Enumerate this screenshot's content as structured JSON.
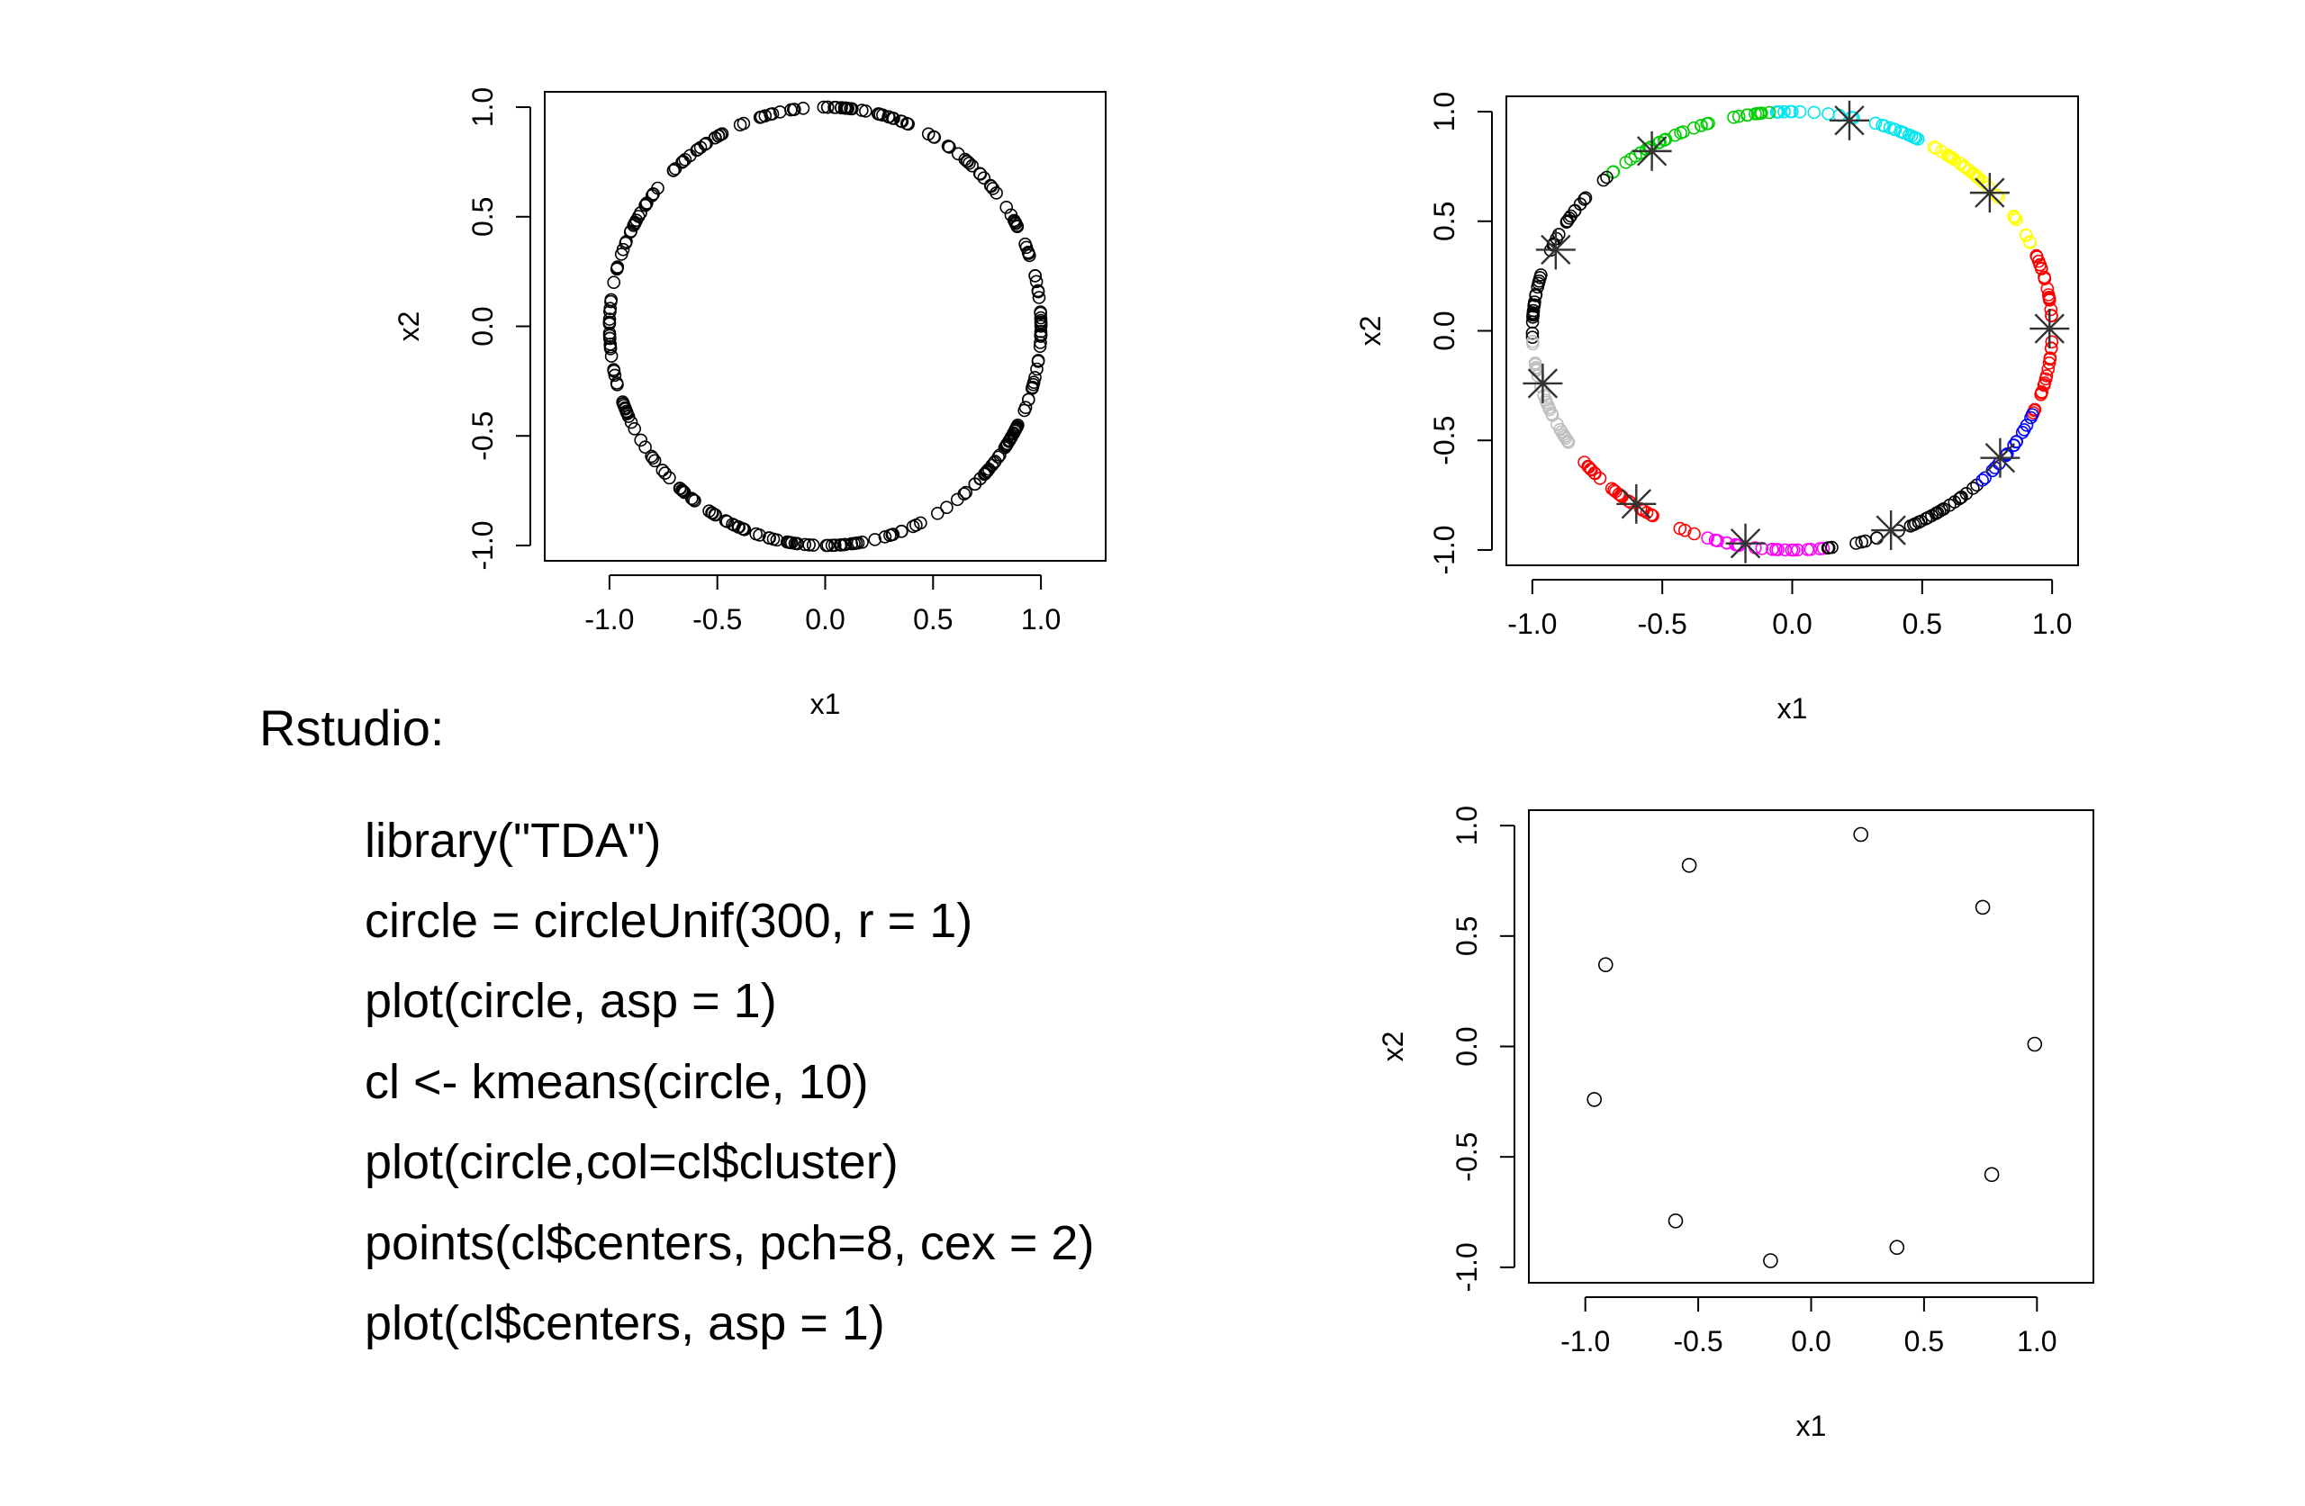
{
  "heading": "Rstudio:",
  "code_lines": [
    "library(\"TDA\")",
    "circle = circleUnif(300, r = 1)",
    "plot(circle, asp = 1)",
    "cl <- kmeans(circle, 10)",
    "plot(circle,col=cl$cluster)",
    "points(cl$centers, pch=8, cex = 2)",
    "plot(cl$centers, asp = 1)"
  ],
  "chart_data": [
    {
      "type": "scatter",
      "xlabel": "x1",
      "ylabel": "x2",
      "xlim": [
        -1.3,
        1.3
      ],
      "ylim": [
        -1.07,
        1.07
      ],
      "x_ticks": [
        "-1.0",
        "-0.5",
        "0.0",
        "0.5",
        "1.0"
      ],
      "y_ticks": [
        "-1.0",
        "-0.5",
        "0.0",
        "0.5",
        "1.0"
      ],
      "series": [
        {
          "points_on": "unit circle",
          "count": 300,
          "color": "#000000",
          "marker": "open-circle"
        }
      ]
    },
    {
      "type": "scatter",
      "xlabel": "x1",
      "ylabel": "x2",
      "xlim": [
        -1.1,
        1.1
      ],
      "ylim": [
        -1.07,
        1.07
      ],
      "x_ticks": [
        "-1.0",
        "-0.5",
        "0.0",
        "0.5",
        "1.0"
      ],
      "y_ticks": [
        "-1.0",
        "-0.5",
        "0.0",
        "0.5",
        "1.0"
      ],
      "clusters": [
        {
          "color": "#ff0000",
          "arc_deg": [
            -22,
            22
          ]
        },
        {
          "color": "#ffff00",
          "arc_deg": [
            22,
            60
          ]
        },
        {
          "color": "#00e5ee",
          "arc_deg": [
            60,
            95
          ]
        },
        {
          "color": "#00cd00",
          "arc_deg": [
            95,
            135
          ]
        },
        {
          "color": "#000000",
          "arc_deg": [
            135,
            182
          ]
        },
        {
          "color": "#bebebe",
          "arc_deg": [
            182,
            215
          ]
        },
        {
          "color": "#ff0000",
          "arc_deg": [
            215,
            250
          ]
        },
        {
          "color": "#ff00ff",
          "arc_deg": [
            250,
            277
          ]
        },
        {
          "color": "#000000",
          "arc_deg": [
            277,
            316
          ]
        },
        {
          "color": "#0000ff",
          "arc_deg": [
            316,
            338
          ]
        }
      ],
      "centers": [
        [
          0.22,
          0.96
        ],
        [
          -0.54,
          0.82
        ],
        [
          -0.91,
          0.37
        ],
        [
          -0.96,
          -0.24
        ],
        [
          0.76,
          0.63
        ],
        [
          0.99,
          0.01
        ],
        [
          0.8,
          -0.58
        ],
        [
          0.38,
          -0.91
        ],
        [
          -0.18,
          -0.97
        ],
        [
          -0.6,
          -0.79
        ]
      ],
      "center_marker": "star"
    },
    {
      "type": "scatter",
      "xlabel": "x1",
      "ylabel": "x2",
      "xlim": [
        -1.25,
        1.25
      ],
      "ylim": [
        -1.07,
        1.07
      ],
      "x_ticks": [
        "-1.0",
        "-0.5",
        "0.0",
        "0.5",
        "1.0"
      ],
      "y_ticks": [
        "-1.0",
        "-0.5",
        "0.0",
        "0.5",
        "1.0"
      ],
      "points": [
        [
          0.22,
          0.96
        ],
        [
          -0.54,
          0.82
        ],
        [
          -0.91,
          0.37
        ],
        [
          -0.96,
          -0.24
        ],
        [
          0.76,
          0.63
        ],
        [
          0.99,
          0.01
        ],
        [
          0.8,
          -0.58
        ],
        [
          0.38,
          -0.91
        ],
        [
          -0.18,
          -0.97
        ],
        [
          -0.6,
          -0.79
        ]
      ],
      "marker": "open-circle"
    }
  ]
}
